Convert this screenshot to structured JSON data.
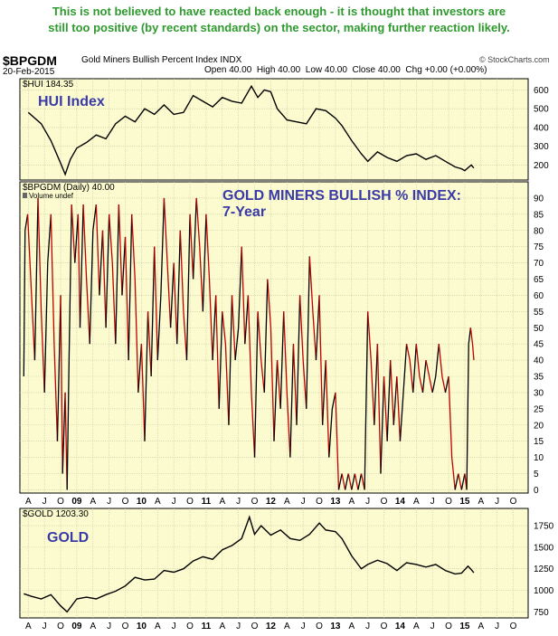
{
  "note": {
    "line1": "This is not believed to have reacted back enough - it is thought that investors are",
    "line2": "still too positive (by recent standards) on the sector, making further reaction likely."
  },
  "header": {
    "symbol": "$BPGDM",
    "title": "Gold Miners Bullish Percent Index",
    "exchange": "INDX",
    "watermark": "© StockCharts.com",
    "date": "20-Feb-2015",
    "open": "Open 40.00",
    "high": "High 40.00",
    "low": "Low 40.00",
    "close": "Close 40.00",
    "chg": "Chg +0.00 (+0.00%)"
  },
  "chart_data": [
    {
      "type": "line",
      "legend": "$HUI 184.35",
      "annotation": "HUI Index",
      "yticks": [
        200,
        300,
        400,
        500,
        600
      ],
      "ylim": [
        120,
        660
      ],
      "x": [
        2008.25,
        2008.45,
        2008.6,
        2008.75,
        2008.82,
        2008.9,
        2009.0,
        2009.15,
        2009.3,
        2009.45,
        2009.6,
        2009.75,
        2009.9,
        2010.05,
        2010.2,
        2010.35,
        2010.5,
        2010.65,
        2010.8,
        2010.95,
        2011.1,
        2011.25,
        2011.4,
        2011.55,
        2011.7,
        2011.8,
        2011.9,
        2012.0,
        2012.1,
        2012.25,
        2012.4,
        2012.55,
        2012.7,
        2012.85,
        2013.0,
        2013.1,
        2013.25,
        2013.4,
        2013.5,
        2013.65,
        2013.8,
        2013.95,
        2014.1,
        2014.25,
        2014.4,
        2014.55,
        2014.7,
        2014.85,
        2014.95,
        2015.0,
        2015.1,
        2015.14
      ],
      "values": [
        480,
        420,
        330,
        210,
        150,
        230,
        290,
        320,
        360,
        340,
        420,
        460,
        430,
        500,
        470,
        520,
        470,
        480,
        570,
        540,
        510,
        560,
        540,
        530,
        620,
        560,
        600,
        590,
        500,
        440,
        430,
        420,
        500,
        490,
        450,
        410,
        330,
        260,
        220,
        270,
        240,
        220,
        250,
        260,
        230,
        250,
        220,
        190,
        180,
        170,
        200,
        184.35
      ]
    },
    {
      "type": "line",
      "legend": "$BPGDM (Daily) 40.00",
      "legend2": "Volume undef",
      "annotation_line1": "GOLD MINERS BULLISH % INDEX:",
      "annotation_line2": "7-Year",
      "yticks": [
        0,
        5,
        10,
        15,
        20,
        25,
        30,
        35,
        40,
        45,
        50,
        55,
        60,
        65,
        70,
        75,
        80,
        85,
        90
      ],
      "ylim": [
        -1,
        95
      ],
      "x": [
        2008.18,
        2008.2,
        2008.24,
        2008.3,
        2008.35,
        2008.4,
        2008.45,
        2008.5,
        2008.55,
        2008.6,
        2008.65,
        2008.7,
        2008.75,
        2008.78,
        2008.82,
        2008.85,
        2008.88,
        2008.92,
        2008.97,
        2009.02,
        2009.05,
        2009.1,
        2009.15,
        2009.2,
        2009.25,
        2009.3,
        2009.35,
        2009.4,
        2009.45,
        2009.5,
        2009.55,
        2009.6,
        2009.65,
        2009.7,
        2009.75,
        2009.8,
        2009.85,
        2009.9,
        2009.95,
        2010.0,
        2010.05,
        2010.1,
        2010.15,
        2010.2,
        2010.25,
        2010.3,
        2010.35,
        2010.4,
        2010.45,
        2010.5,
        2010.55,
        2010.6,
        2010.65,
        2010.7,
        2010.75,
        2010.8,
        2010.85,
        2010.9,
        2010.95,
        2011.0,
        2011.05,
        2011.1,
        2011.15,
        2011.2,
        2011.25,
        2011.3,
        2011.35,
        2011.4,
        2011.45,
        2011.5,
        2011.55,
        2011.6,
        2011.65,
        2011.7,
        2011.75,
        2011.8,
        2011.85,
        2011.9,
        2011.95,
        2012.0,
        2012.05,
        2012.1,
        2012.15,
        2012.2,
        2012.25,
        2012.3,
        2012.35,
        2012.4,
        2012.45,
        2012.5,
        2012.55,
        2012.6,
        2012.65,
        2012.7,
        2012.75,
        2012.8,
        2012.85,
        2012.9,
        2012.95,
        2013.0,
        2013.05,
        2013.1,
        2013.15,
        2013.2,
        2013.25,
        2013.3,
        2013.35,
        2013.4,
        2013.45,
        2013.5,
        2013.55,
        2013.6,
        2013.65,
        2013.7,
        2013.75,
        2013.8,
        2013.85,
        2013.9,
        2013.95,
        2014.0,
        2014.05,
        2014.1,
        2014.15,
        2014.2,
        2014.25,
        2014.3,
        2014.35,
        2014.4,
        2014.45,
        2014.5,
        2014.55,
        2014.6,
        2014.65,
        2014.7,
        2014.75,
        2014.8,
        2014.85,
        2014.9,
        2014.95,
        2015.0,
        2015.03,
        2015.06,
        2015.09,
        2015.12,
        2015.14
      ],
      "values": [
        35,
        80,
        85,
        60,
        40,
        90,
        55,
        30,
        70,
        85,
        45,
        15,
        60,
        5,
        30,
        0,
        40,
        88,
        70,
        85,
        50,
        88,
        65,
        45,
        80,
        88,
        60,
        80,
        50,
        85,
        70,
        45,
        88,
        60,
        78,
        40,
        85,
        65,
        30,
        45,
        15,
        55,
        35,
        75,
        40,
        60,
        90,
        70,
        50,
        70,
        45,
        80,
        55,
        40,
        85,
        65,
        90,
        75,
        55,
        85,
        65,
        40,
        60,
        25,
        55,
        45,
        20,
        60,
        40,
        50,
        75,
        45,
        60,
        30,
        10,
        55,
        40,
        30,
        65,
        50,
        15,
        40,
        25,
        55,
        30,
        10,
        45,
        20,
        60,
        40,
        25,
        72,
        55,
        40,
        60,
        20,
        40,
        10,
        25,
        30,
        0,
        5,
        0,
        5,
        0,
        5,
        0,
        5,
        0,
        55,
        40,
        20,
        45,
        5,
        35,
        15,
        40,
        20,
        35,
        15,
        30,
        45,
        40,
        30,
        45,
        35,
        30,
        40,
        35,
        30,
        35,
        45,
        35,
        30,
        35,
        10,
        0,
        5,
        0,
        5,
        0,
        45,
        50,
        45,
        40
      ]
    },
    {
      "type": "line",
      "legend": "$GOLD 1203.30",
      "annotation": "GOLD",
      "yticks": [
        750,
        1000,
        1250,
        1500,
        1750
      ],
      "ylim": [
        680,
        1950
      ],
      "x": [
        2008.18,
        2008.3,
        2008.45,
        2008.6,
        2008.75,
        2008.85,
        2009.0,
        2009.15,
        2009.3,
        2009.45,
        2009.6,
        2009.75,
        2009.9,
        2010.05,
        2010.2,
        2010.35,
        2010.5,
        2010.65,
        2010.8,
        2010.95,
        2011.1,
        2011.25,
        2011.4,
        2011.55,
        2011.67,
        2011.75,
        2011.85,
        2012.0,
        2012.15,
        2012.3,
        2012.45,
        2012.6,
        2012.75,
        2012.85,
        2013.0,
        2013.1,
        2013.25,
        2013.4,
        2013.5,
        2013.65,
        2013.8,
        2013.95,
        2014.1,
        2014.25,
        2014.4,
        2014.55,
        2014.7,
        2014.85,
        2014.95,
        2015.05,
        2015.1,
        2015.14
      ],
      "values": [
        960,
        930,
        900,
        950,
        820,
        750,
        900,
        920,
        900,
        950,
        990,
        1050,
        1150,
        1120,
        1130,
        1230,
        1210,
        1250,
        1340,
        1390,
        1360,
        1470,
        1520,
        1600,
        1850,
        1650,
        1750,
        1640,
        1700,
        1600,
        1580,
        1650,
        1780,
        1700,
        1680,
        1600,
        1400,
        1250,
        1300,
        1350,
        1310,
        1230,
        1320,
        1300,
        1270,
        1300,
        1230,
        1190,
        1200,
        1280,
        1240,
        1203.3
      ]
    }
  ],
  "xaxis_labels": [
    "A",
    "J",
    "O",
    "09",
    "A",
    "J",
    "O",
    "10",
    "A",
    "J",
    "O",
    "11",
    "A",
    "J",
    "O",
    "12",
    "A",
    "J",
    "O",
    "13",
    "A",
    "J",
    "O",
    "14",
    "A",
    "J",
    "O",
    "15",
    "A",
    "J",
    "O"
  ]
}
